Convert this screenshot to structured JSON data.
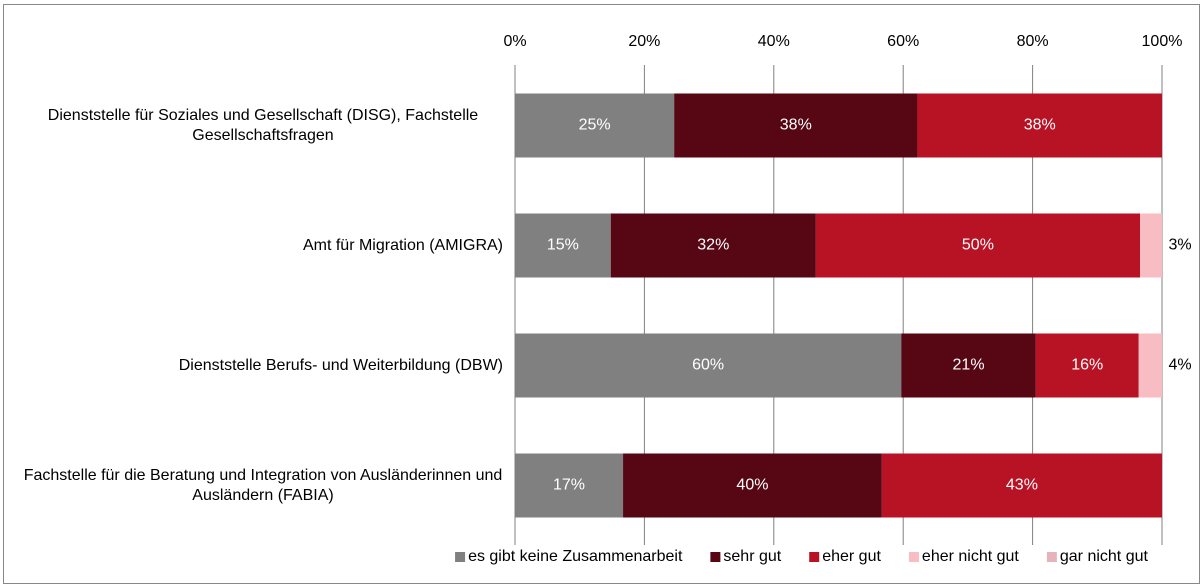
{
  "chart_data": {
    "type": "stacked_barh",
    "categories": [
      "Dienststelle für Soziales und Gesellschaft (DISG), Fachstelle Gesellschaftsfragen",
      "Amt für Migration (AMIGRA)",
      "Dienststelle Berufs- und Weiterbildung (DBW)",
      "Fachstelle für die Beratung und Integration von Ausländerinnen und Ausländern (FABIA)"
    ],
    "series": [
      {
        "name": "es gibt keine Zusammenarbeit",
        "color": "#808080",
        "values": [
          24.6,
          14.8,
          59.7,
          16.7
        ],
        "value_labels": [
          "25%",
          "15%",
          "60%",
          "17%"
        ]
      },
      {
        "name": "sehr gut",
        "color": "#560713",
        "values": [
          37.6,
          31.7,
          20.8,
          40.0
        ],
        "value_labels": [
          "38%",
          "32%",
          "21%",
          "40%"
        ]
      },
      {
        "name": "eher gut",
        "color": "#b81225",
        "values": [
          37.8,
          50.1,
          15.9,
          43.3
        ],
        "value_labels": [
          "38%",
          "50%",
          "16%",
          "43%"
        ]
      },
      {
        "name": "eher nicht gut",
        "color": "#f8bcc3",
        "values": [
          0,
          3.4,
          3.6,
          0
        ],
        "value_labels": [
          null,
          "3%",
          "4%",
          null
        ]
      },
      {
        "name": "gar nicht gut",
        "color": "#e6b3bb",
        "values": [
          0,
          0,
          0,
          0
        ]
      }
    ],
    "xlim": [
      0,
      100
    ],
    "xticks": [
      {
        "value": 0,
        "label": "0%"
      },
      {
        "value": 20,
        "label": "20%"
      },
      {
        "value": 40,
        "label": "40%"
      },
      {
        "value": 60,
        "label": "60%"
      },
      {
        "value": 80,
        "label": "80%"
      },
      {
        "value": 100,
        "label": "100%"
      }
    ],
    "grid": true,
    "legend": "bottom"
  }
}
